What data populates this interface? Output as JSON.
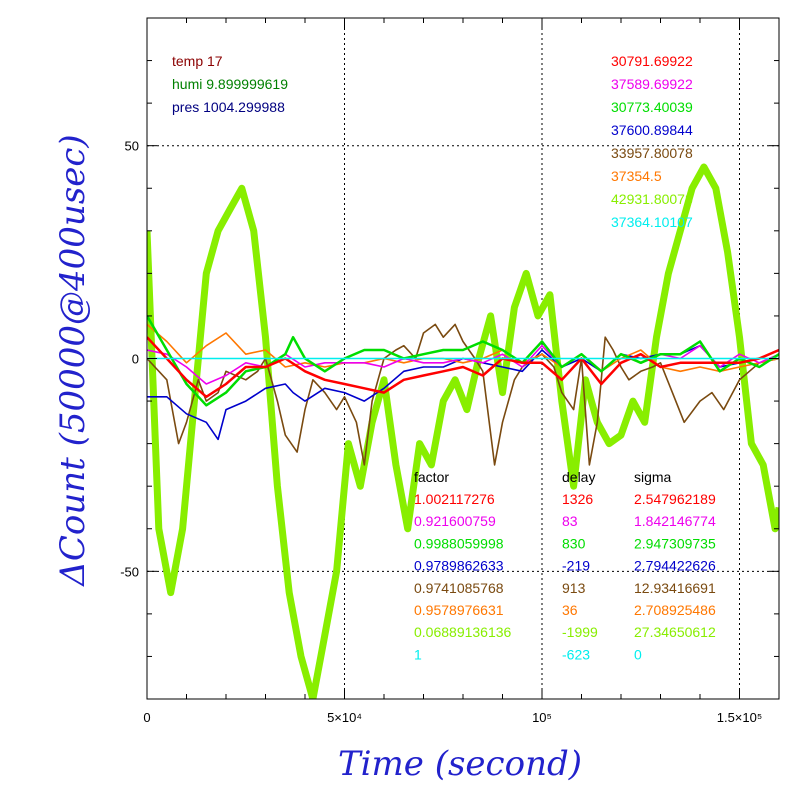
{
  "chart_data": {
    "type": "line",
    "title": "",
    "xlabel": "Time (second)",
    "ylabel": "ΔCount (50000@400usec)",
    "xlim": [
      0,
      160000
    ],
    "ylim": [
      -80,
      80
    ],
    "grid": true,
    "x_ticks": [
      {
        "value": 0,
        "label": "0"
      },
      {
        "value": 50000,
        "label": "5×10⁴"
      },
      {
        "value": 100000,
        "label": "10⁵"
      },
      {
        "value": 150000,
        "label": "1.5×10⁵"
      }
    ],
    "y_ticks": [
      {
        "value": -50,
        "label": "-50"
      },
      {
        "value": 0,
        "label": "0"
      },
      {
        "value": 50,
        "label": "50"
      }
    ],
    "env_info": [
      {
        "label": "temp",
        "value": "17",
        "color": "#8b0000"
      },
      {
        "label": "humi",
        "value": "9.899999619",
        "color": "#008000"
      },
      {
        "label": "pres",
        "value": "1004.299988",
        "color": "#000080"
      }
    ],
    "series": [
      {
        "base": "30791.69922",
        "color": "#ff0000",
        "factor": "1.002117276",
        "delay": "1326",
        "sigma": "2.547962189",
        "points": [
          [
            0,
            5
          ],
          [
            5000,
            0
          ],
          [
            10000,
            -5
          ],
          [
            15000,
            -9
          ],
          [
            20000,
            -6
          ],
          [
            25000,
            -2
          ],
          [
            30000,
            -2
          ],
          [
            35000,
            0
          ],
          [
            40000,
            -3
          ],
          [
            45000,
            -5
          ],
          [
            50000,
            -6
          ],
          [
            55000,
            -7
          ],
          [
            60000,
            -8
          ],
          [
            65000,
            -5
          ],
          [
            70000,
            -4
          ],
          [
            75000,
            -3
          ],
          [
            80000,
            -2
          ],
          [
            85000,
            -4
          ],
          [
            90000,
            0
          ],
          [
            95000,
            -1
          ],
          [
            100000,
            -1
          ],
          [
            105000,
            -5
          ],
          [
            110000,
            0
          ],
          [
            115000,
            -6
          ],
          [
            120000,
            -1
          ],
          [
            125000,
            1
          ],
          [
            130000,
            -2
          ],
          [
            135000,
            -1
          ],
          [
            140000,
            -1
          ],
          [
            145000,
            -1
          ],
          [
            150000,
            -1
          ],
          [
            155000,
            0
          ],
          [
            160000,
            2
          ]
        ]
      },
      {
        "base": "37589.69922",
        "color": "#ee00ee",
        "factor": "0.921600759",
        "delay": "83",
        "sigma": "1.842146774",
        "points": [
          [
            0,
            2
          ],
          [
            5000,
            1
          ],
          [
            10000,
            -2
          ],
          [
            15000,
            -6
          ],
          [
            20000,
            -4
          ],
          [
            25000,
            -1
          ],
          [
            30000,
            -2
          ],
          [
            35000,
            1
          ],
          [
            40000,
            -2
          ],
          [
            45000,
            -1
          ],
          [
            50000,
            -1
          ],
          [
            55000,
            -1
          ],
          [
            60000,
            -2
          ],
          [
            65000,
            0
          ],
          [
            70000,
            -1
          ],
          [
            75000,
            -1
          ],
          [
            80000,
            0
          ],
          [
            85000,
            -1
          ],
          [
            90000,
            1
          ],
          [
            95000,
            -2
          ],
          [
            100000,
            3
          ],
          [
            105000,
            -2
          ],
          [
            110000,
            1
          ],
          [
            115000,
            -3
          ],
          [
            120000,
            1
          ],
          [
            125000,
            -1
          ],
          [
            130000,
            1
          ],
          [
            135000,
            0
          ],
          [
            140000,
            3
          ],
          [
            145000,
            -2
          ],
          [
            150000,
            1
          ],
          [
            155000,
            -1
          ],
          [
            160000,
            1
          ]
        ]
      },
      {
        "base": "30773.40039",
        "color": "#00dd00",
        "factor": "0.9988059998",
        "delay": "830",
        "sigma": "2.947309735",
        "points": [
          [
            0,
            10
          ],
          [
            5000,
            2
          ],
          [
            10000,
            -6
          ],
          [
            15000,
            -11
          ],
          [
            20000,
            -8
          ],
          [
            25000,
            -3
          ],
          [
            30000,
            -2
          ],
          [
            35000,
            1
          ],
          [
            37000,
            5
          ],
          [
            40000,
            0
          ],
          [
            45000,
            -3
          ],
          [
            50000,
            0
          ],
          [
            55000,
            2
          ],
          [
            60000,
            2
          ],
          [
            65000,
            0
          ],
          [
            70000,
            1
          ],
          [
            75000,
            2
          ],
          [
            80000,
            2
          ],
          [
            85000,
            4
          ],
          [
            90000,
            2
          ],
          [
            95000,
            -1
          ],
          [
            100000,
            4
          ],
          [
            105000,
            -2
          ],
          [
            110000,
            1
          ],
          [
            115000,
            -3
          ],
          [
            120000,
            1
          ],
          [
            125000,
            -1
          ],
          [
            130000,
            1
          ],
          [
            135000,
            1
          ],
          [
            140000,
            4
          ],
          [
            145000,
            -3
          ],
          [
            150000,
            0
          ],
          [
            155000,
            -2
          ],
          [
            160000,
            1
          ]
        ]
      },
      {
        "base": "37600.89844",
        "color": "#0000cc",
        "factor": "0.9789862633",
        "delay": "-219",
        "sigma": "2.794422626",
        "points": [
          [
            0,
            -9
          ],
          [
            5000,
            -9
          ],
          [
            10000,
            -13
          ],
          [
            15000,
            -15
          ],
          [
            18000,
            -19
          ],
          [
            20000,
            -12
          ],
          [
            25000,
            -10
          ],
          [
            30000,
            -7
          ],
          [
            35000,
            -6
          ],
          [
            37000,
            -8
          ],
          [
            40000,
            -10
          ],
          [
            45000,
            -7
          ],
          [
            50000,
            -8
          ],
          [
            55000,
            -10
          ],
          [
            60000,
            -7
          ],
          [
            65000,
            -3
          ],
          [
            70000,
            -2
          ],
          [
            75000,
            -2
          ],
          [
            80000,
            0
          ],
          [
            85000,
            -1
          ],
          [
            90000,
            -2
          ],
          [
            95000,
            -3
          ],
          [
            100000,
            2
          ],
          [
            105000,
            -2
          ],
          [
            110000,
            0
          ],
          [
            115000,
            -3
          ],
          [
            120000,
            1
          ],
          [
            125000,
            0
          ],
          [
            130000,
            1
          ],
          [
            135000,
            1
          ],
          [
            140000,
            3
          ],
          [
            145000,
            -2
          ],
          [
            150000,
            -1
          ],
          [
            155000,
            0
          ],
          [
            160000,
            2
          ]
        ]
      },
      {
        "base": "33957.80078",
        "color": "#7a4a10",
        "factor": "0.9741085768",
        "delay": "913",
        "sigma": "12.93416691",
        "points": [
          [
            0,
            0
          ],
          [
            5000,
            -5
          ],
          [
            8000,
            -20
          ],
          [
            10000,
            -15
          ],
          [
            13000,
            -5
          ],
          [
            15000,
            -10
          ],
          [
            18000,
            -8
          ],
          [
            20000,
            -3
          ],
          [
            25000,
            -5
          ],
          [
            28000,
            -3
          ],
          [
            30000,
            0
          ],
          [
            33000,
            -10
          ],
          [
            35000,
            -18
          ],
          [
            38000,
            -22
          ],
          [
            40000,
            -12
          ],
          [
            42000,
            -5
          ],
          [
            45000,
            -8
          ],
          [
            48000,
            -12
          ],
          [
            50000,
            -9
          ],
          [
            53000,
            -15
          ],
          [
            55000,
            -25
          ],
          [
            57000,
            -10
          ],
          [
            60000,
            0
          ],
          [
            63000,
            2
          ],
          [
            65000,
            3
          ],
          [
            68000,
            0
          ],
          [
            70000,
            6
          ],
          [
            73000,
            8
          ],
          [
            75000,
            5
          ],
          [
            78000,
            8
          ],
          [
            80000,
            4
          ],
          [
            83000,
            0
          ],
          [
            85000,
            -3
          ],
          [
            88000,
            -25
          ],
          [
            90000,
            -15
          ],
          [
            93000,
            -5
          ],
          [
            95000,
            -2
          ],
          [
            98000,
            0
          ],
          [
            100000,
            1
          ],
          [
            103000,
            -2
          ],
          [
            105000,
            -8
          ],
          [
            108000,
            -12
          ],
          [
            110000,
            0
          ],
          [
            112000,
            -25
          ],
          [
            114000,
            -15
          ],
          [
            116000,
            5
          ],
          [
            118000,
            2
          ],
          [
            120000,
            -2
          ],
          [
            122000,
            -5
          ],
          [
            125000,
            -3
          ],
          [
            128000,
            -2
          ],
          [
            130000,
            -1
          ],
          [
            133000,
            -8
          ],
          [
            136000,
            -15
          ],
          [
            140000,
            -10
          ],
          [
            143000,
            -8
          ],
          [
            146000,
            -12
          ],
          [
            150000,
            -5
          ],
          [
            155000,
            -1
          ],
          [
            160000,
            0
          ]
        ]
      },
      {
        "base": "37354.5",
        "color": "#ff7700",
        "factor": "0.9578976631",
        "delay": "36",
        "sigma": "2.708925486",
        "points": [
          [
            0,
            8
          ],
          [
            5000,
            4
          ],
          [
            10000,
            -1
          ],
          [
            15000,
            3
          ],
          [
            20000,
            6
          ],
          [
            25000,
            1
          ],
          [
            30000,
            2
          ],
          [
            35000,
            -2
          ],
          [
            40000,
            -1
          ],
          [
            45000,
            -2
          ],
          [
            50000,
            -1
          ],
          [
            55000,
            -1
          ],
          [
            60000,
            0
          ],
          [
            65000,
            -1
          ],
          [
            70000,
            0
          ],
          [
            75000,
            0
          ],
          [
            80000,
            -1
          ],
          [
            85000,
            0
          ],
          [
            90000,
            2
          ],
          [
            95000,
            -1
          ],
          [
            100000,
            1
          ],
          [
            105000,
            -2
          ],
          [
            110000,
            1
          ],
          [
            115000,
            -3
          ],
          [
            120000,
            0
          ],
          [
            125000,
            2
          ],
          [
            130000,
            -2
          ],
          [
            135000,
            -3
          ],
          [
            140000,
            -2
          ],
          [
            145000,
            -3
          ],
          [
            150000,
            -2
          ],
          [
            155000,
            -1
          ],
          [
            160000,
            0
          ]
        ]
      },
      {
        "base": "42931.80078",
        "color": "#88ee00",
        "factor": "0.06889136136",
        "delay": "-1999",
        "sigma": "27.34650612",
        "points": [
          [
            0,
            30
          ],
          [
            3000,
            -40
          ],
          [
            6000,
            -55
          ],
          [
            9000,
            -40
          ],
          [
            12000,
            -10
          ],
          [
            15000,
            20
          ],
          [
            18000,
            30
          ],
          [
            21000,
            35
          ],
          [
            24000,
            40
          ],
          [
            27000,
            30
          ],
          [
            30000,
            5
          ],
          [
            33000,
            -30
          ],
          [
            36000,
            -55
          ],
          [
            39000,
            -70
          ],
          [
            42000,
            -80
          ],
          [
            45000,
            -65
          ],
          [
            48000,
            -50
          ],
          [
            51000,
            -20
          ],
          [
            54000,
            -30
          ],
          [
            57000,
            -15
          ],
          [
            60000,
            -5
          ],
          [
            63000,
            -25
          ],
          [
            66000,
            -40
          ],
          [
            69000,
            -20
          ],
          [
            72000,
            -25
          ],
          [
            75000,
            -10
          ],
          [
            78000,
            -5
          ],
          [
            81000,
            -12
          ],
          [
            84000,
            0
          ],
          [
            87000,
            10
          ],
          [
            90000,
            -8
          ],
          [
            93000,
            12
          ],
          [
            96000,
            20
          ],
          [
            99000,
            10
          ],
          [
            102000,
            15
          ],
          [
            105000,
            -10
          ],
          [
            108000,
            -30
          ],
          [
            111000,
            -5
          ],
          [
            114000,
            -15
          ],
          [
            117000,
            -20
          ],
          [
            120000,
            -18
          ],
          [
            123000,
            -10
          ],
          [
            126000,
            -15
          ],
          [
            129000,
            5
          ],
          [
            132000,
            20
          ],
          [
            135000,
            30
          ],
          [
            138000,
            40
          ],
          [
            141000,
            45
          ],
          [
            144000,
            40
          ],
          [
            147000,
            25
          ],
          [
            150000,
            5
          ],
          [
            153000,
            -20
          ],
          [
            156000,
            -25
          ],
          [
            159000,
            -40
          ],
          [
            160000,
            -35
          ]
        ]
      },
      {
        "base": "37364.10107",
        "color": "#00eeee",
        "factor": "1",
        "delay": "-623",
        "sigma": "0",
        "points": [
          [
            0,
            0
          ],
          [
            160000,
            0
          ]
        ]
      }
    ]
  },
  "table_headers": {
    "factor": "factor",
    "delay": "delay",
    "sigma": "sigma"
  }
}
